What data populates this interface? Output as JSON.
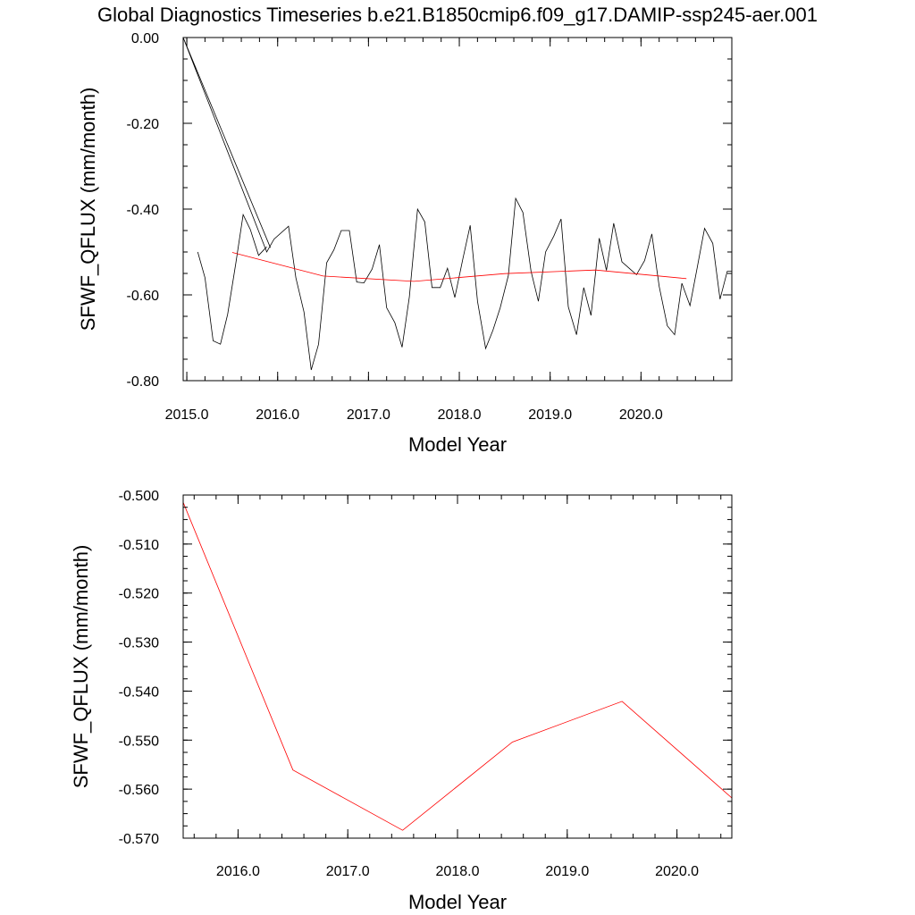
{
  "title": "Global Diagnostics Timeseries b.e21.B1850cmip6.f09_g17.DAMIP-ssp245-aer.001",
  "colors": {
    "monthly": "#000000",
    "annual": "#ff0000",
    "axis": "#000000"
  },
  "chart_data": [
    {
      "type": "line",
      "xlabel": "Model Year",
      "ylabel": "SFWF_QFLUX (mm/month)",
      "xlim": [
        2014.96,
        2021.0
      ],
      "ylim": [
        -0.8,
        0.0
      ],
      "xticks": [
        {
          "v": 2015.0,
          "label": "2015.0"
        },
        {
          "v": 2016.0,
          "label": "2016.0"
        },
        {
          "v": 2017.0,
          "label": "2017.0"
        },
        {
          "v": 2018.0,
          "label": "2018.0"
        },
        {
          "v": 2019.0,
          "label": "2019.0"
        },
        {
          "v": 2020.0,
          "label": "2020.0"
        }
      ],
      "yticks": [
        {
          "v": 0.0,
          "label": "0.00"
        },
        {
          "v": -0.2,
          "label": "-0.20"
        },
        {
          "v": -0.4,
          "label": "-0.40"
        },
        {
          "v": -0.6,
          "label": "-0.60"
        },
        {
          "v": -0.8,
          "label": "-0.80"
        }
      ],
      "series": [
        {
          "color": "#000000",
          "x": [
            2014.96,
            2015.92,
            2014.96,
            2015.88,
            2015.96,
            2016.12,
            2016.2,
            2016.29,
            2016.37,
            2016.45,
            2016.54,
            2016.62,
            2016.7,
            2016.79,
            2016.87,
            2016.95,
            2017.04,
            2017.12,
            2017.2,
            2017.29,
            2017.37,
            2017.45,
            2017.54,
            2017.62,
            2017.7,
            2017.79,
            2017.87,
            2017.95,
            2018.04,
            2018.12,
            2018.2,
            2018.29,
            2018.37,
            2018.45,
            2018.54,
            2018.62,
            2018.7,
            2018.79,
            2018.87,
            2018.95,
            2019.04,
            2019.12,
            2019.2,
            2019.29,
            2019.37,
            2019.45,
            2019.54,
            2019.62,
            2019.7,
            2019.79,
            2019.87,
            2019.95,
            2020.04,
            2020.12,
            2020.2,
            2020.29,
            2020.37,
            2020.45,
            2020.54,
            2020.62,
            2020.7,
            2020.79,
            2020.87,
            2020.95,
            2021.0
          ],
          "y": [
            0.0,
            -0.49,
            0.0,
            -0.5,
            -0.47,
            -0.44,
            -0.56,
            -0.64,
            -0.775,
            -0.715,
            -0.525,
            -0.495,
            -0.45,
            -0.45,
            -0.57,
            -0.572,
            -0.54,
            -0.483,
            -0.63,
            -0.665,
            -0.722,
            -0.605,
            -0.4,
            -0.43,
            -0.583,
            -0.583,
            -0.538,
            -0.606,
            -0.515,
            -0.438,
            -0.615,
            -0.725,
            -0.683,
            -0.63,
            -0.555,
            -0.375,
            -0.408,
            -0.545,
            -0.615,
            -0.5,
            -0.463,
            -0.423,
            -0.628,
            -0.693,
            -0.583,
            -0.648,
            -0.468,
            -0.543,
            -0.433,
            -0.523,
            -0.538,
            -0.553,
            -0.52,
            -0.458,
            -0.58,
            -0.672,
            -0.693,
            -0.573,
            -0.625,
            -0.535,
            -0.445,
            -0.48,
            -0.61,
            -0.545,
            -0.545
          ]
        },
        {
          "color": "#000000",
          "x": [
            2015.12,
            2015.2,
            2015.29,
            2015.37,
            2015.45,
            2015.54,
            2015.62,
            2015.7,
            2015.79,
            2015.88
          ],
          "y": [
            -0.5,
            -0.56,
            -0.707,
            -0.715,
            -0.645,
            -0.525,
            -0.413,
            -0.448,
            -0.508,
            -0.488
          ]
        },
        {
          "color": "#ff0000",
          "x": [
            2015.5,
            2016.5,
            2017.5,
            2018.5,
            2019.5,
            2020.5
          ],
          "y": [
            -0.501,
            -0.556,
            -0.5685,
            -0.5505,
            -0.542,
            -0.562
          ]
        }
      ]
    },
    {
      "type": "line",
      "xlabel": "Model Year",
      "ylabel": "SFWF_QFLUX (mm/month)",
      "xlim": [
        2015.5,
        2020.5
      ],
      "ylim": [
        -0.57,
        -0.5
      ],
      "xticks": [
        {
          "v": 2016.0,
          "label": "2016.0"
        },
        {
          "v": 2017.0,
          "label": "2017.0"
        },
        {
          "v": 2018.0,
          "label": "2018.0"
        },
        {
          "v": 2019.0,
          "label": "2019.0"
        },
        {
          "v": 2020.0,
          "label": "2020.0"
        }
      ],
      "yticks": [
        {
          "v": -0.5,
          "label": "-0.500"
        },
        {
          "v": -0.51,
          "label": "-0.510"
        },
        {
          "v": -0.52,
          "label": "-0.520"
        },
        {
          "v": -0.53,
          "label": "-0.530"
        },
        {
          "v": -0.54,
          "label": "-0.540"
        },
        {
          "v": -0.55,
          "label": "-0.550"
        },
        {
          "v": -0.56,
          "label": "-0.560"
        },
        {
          "v": -0.57,
          "label": "-0.570"
        }
      ],
      "series": [
        {
          "color": "#ff0000",
          "x": [
            2015.5,
            2016.5,
            2017.5,
            2018.5,
            2019.5,
            2020.5
          ],
          "y": [
            -0.5015,
            -0.5561,
            -0.5684,
            -0.5504,
            -0.5421,
            -0.5618
          ]
        }
      ]
    }
  ]
}
